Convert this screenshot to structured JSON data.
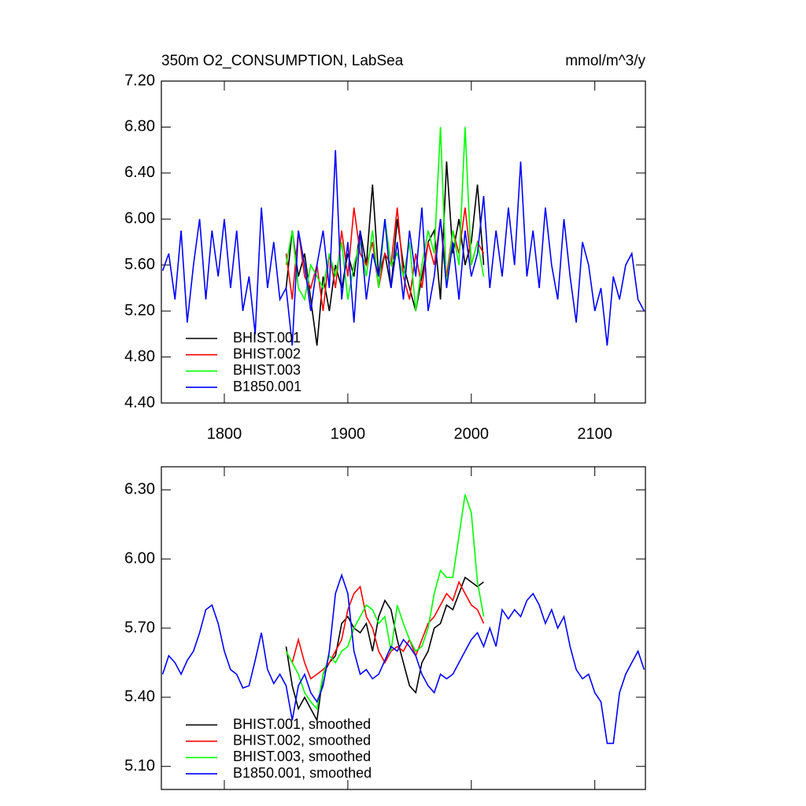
{
  "chart_data": [
    {
      "type": "line",
      "title": "350m O2_CONSUMPTION, LabSea",
      "units_label": "mmol/m^3/y",
      "x": [
        1750,
        1755,
        1760,
        1765,
        1770,
        1775,
        1780,
        1785,
        1790,
        1795,
        1800,
        1805,
        1810,
        1815,
        1820,
        1825,
        1830,
        1835,
        1840,
        1845,
        1850,
        1855,
        1860,
        1865,
        1870,
        1875,
        1880,
        1885,
        1890,
        1895,
        1900,
        1905,
        1910,
        1915,
        1920,
        1925,
        1930,
        1935,
        1940,
        1945,
        1950,
        1955,
        1960,
        1965,
        1970,
        1975,
        1980,
        1985,
        1990,
        1995,
        2000,
        2005,
        2010,
        2015,
        2020,
        2025,
        2030,
        2035,
        2040,
        2045,
        2050,
        2055,
        2060,
        2065,
        2070,
        2075,
        2080,
        2085,
        2090,
        2095,
        2100,
        2105,
        2110,
        2115,
        2120,
        2125,
        2130,
        2135,
        2140
      ],
      "xlim": [
        1749,
        2141
      ],
      "xticks": [
        1800,
        1900,
        2000,
        2100
      ],
      "xtick_labels": true,
      "ylim": [
        4.4,
        7.2
      ],
      "yticks": [
        {
          "value": 4.4,
          "label": "4.40"
        },
        {
          "value": 4.8,
          "label": "4.80"
        },
        {
          "value": 5.2,
          "label": "5.20"
        },
        {
          "value": 5.6,
          "label": "5.60"
        },
        {
          "value": 6.0,
          "label": "6.00"
        },
        {
          "value": 6.4,
          "label": "6.40"
        },
        {
          "value": 6.8,
          "label": "6.80"
        },
        {
          "value": 7.2,
          "label": "7.20"
        }
      ],
      "legend": "lower left",
      "series": [
        {
          "name": "BHIST.001",
          "color": "#000000",
          "values": [
            null,
            null,
            null,
            null,
            null,
            null,
            null,
            null,
            null,
            null,
            null,
            null,
            null,
            null,
            null,
            null,
            null,
            null,
            null,
            null,
            5.4,
            5.9,
            5.5,
            5.7,
            5.3,
            4.9,
            5.5,
            5.2,
            5.6,
            5.4,
            5.7,
            5.5,
            5.9,
            5.6,
            6.3,
            5.5,
            5.7,
            5.4,
            6.0,
            5.6,
            5.4,
            5.2,
            5.5,
            5.8,
            5.9,
            5.3,
            6.5,
            5.7,
            6.0,
            5.6,
            5.8,
            6.3,
            5.6,
            null,
            null,
            null,
            null,
            null,
            null,
            null,
            null,
            null,
            null,
            null,
            null,
            null,
            null,
            null,
            null,
            null,
            null,
            null,
            null,
            null,
            null,
            null,
            null,
            null,
            null
          ]
        },
        {
          "name": "BHIST.002",
          "color": "#ff0000",
          "values": [
            null,
            null,
            null,
            null,
            null,
            null,
            null,
            null,
            null,
            null,
            null,
            null,
            null,
            null,
            null,
            null,
            null,
            null,
            null,
            null,
            5.7,
            5.3,
            5.9,
            5.5,
            5.4,
            5.6,
            5.2,
            5.7,
            5.4,
            5.9,
            5.5,
            6.1,
            5.7,
            5.6,
            5.8,
            5.4,
            5.7,
            5.6,
            6.1,
            5.5,
            5.3,
            5.7,
            5.4,
            5.8,
            5.6,
            6.0,
            5.5,
            5.9,
            5.7,
            6.1,
            5.6,
            5.8,
            5.7,
            null,
            null,
            null,
            null,
            null,
            null,
            null,
            null,
            null,
            null,
            null,
            null,
            null,
            null,
            null,
            null,
            null,
            null,
            null,
            null,
            null,
            null,
            null,
            null,
            null,
            null
          ]
        },
        {
          "name": "BHIST.003",
          "color": "#00ff00",
          "values": [
            null,
            null,
            null,
            null,
            null,
            null,
            null,
            null,
            null,
            null,
            null,
            null,
            null,
            null,
            null,
            null,
            null,
            null,
            null,
            null,
            5.6,
            5.9,
            5.4,
            5.3,
            5.6,
            5.5,
            5.4,
            5.7,
            5.5,
            5.8,
            5.3,
            5.6,
            5.8,
            5.5,
            5.9,
            5.4,
            6.0,
            5.6,
            5.7,
            5.5,
            5.8,
            5.2,
            5.6,
            5.9,
            5.7,
            6.8,
            5.4,
            5.9,
            5.6,
            6.8,
            5.6,
            5.8,
            5.5,
            null,
            null,
            null,
            null,
            null,
            null,
            null,
            null,
            null,
            null,
            null,
            null,
            null,
            null,
            null,
            null,
            null,
            null,
            null,
            null,
            null,
            null,
            null,
            null,
            null,
            null
          ]
        },
        {
          "name": "B1850.001",
          "color": "#0000ff",
          "values": [
            5.55,
            5.7,
            5.3,
            5.9,
            5.1,
            5.6,
            6.0,
            5.3,
            5.9,
            5.5,
            6.0,
            5.4,
            5.9,
            5.2,
            5.5,
            5.0,
            6.1,
            5.4,
            5.8,
            5.3,
            5.4,
            4.9,
            5.9,
            5.6,
            5.2,
            5.6,
            5.9,
            5.4,
            6.6,
            5.3,
            5.8,
            5.1,
            5.9,
            5.3,
            5.7,
            5.5,
            6.0,
            5.4,
            5.8,
            5.3,
            5.9,
            5.5,
            6.1,
            5.2,
            5.5,
            6.0,
            5.4,
            5.8,
            5.3,
            5.9,
            5.5,
            5.7,
            6.2,
            5.4,
            5.9,
            5.5,
            6.1,
            5.6,
            6.5,
            5.5,
            5.9,
            5.4,
            6.1,
            5.6,
            5.3,
            6.0,
            5.5,
            5.1,
            5.8,
            5.6,
            5.2,
            5.4,
            4.9,
            5.5,
            5.3,
            5.6,
            5.7,
            5.3,
            5.2
          ]
        }
      ]
    },
    {
      "type": "line",
      "x": [
        1750,
        1755,
        1760,
        1765,
        1770,
        1775,
        1780,
        1785,
        1790,
        1795,
        1800,
        1805,
        1810,
        1815,
        1820,
        1825,
        1830,
        1835,
        1840,
        1845,
        1850,
        1855,
        1860,
        1865,
        1870,
        1875,
        1880,
        1885,
        1890,
        1895,
        1900,
        1905,
        1910,
        1915,
        1920,
        1925,
        1930,
        1935,
        1940,
        1945,
        1950,
        1955,
        1960,
        1965,
        1970,
        1975,
        1980,
        1985,
        1990,
        1995,
        2000,
        2005,
        2010,
        2015,
        2020,
        2025,
        2030,
        2035,
        2040,
        2045,
        2050,
        2055,
        2060,
        2065,
        2070,
        2075,
        2080,
        2085,
        2090,
        2095,
        2100,
        2105,
        2110,
        2115,
        2120,
        2125,
        2130,
        2135,
        2140
      ],
      "xlim": [
        1749,
        2141
      ],
      "xticks": [
        1800,
        1900,
        2000,
        2100
      ],
      "xtick_labels": false,
      "ylim": [
        5.0,
        6.4
      ],
      "yticks": [
        {
          "value": 5.1,
          "label": "5.10"
        },
        {
          "value": 5.4,
          "label": "5.40"
        },
        {
          "value": 5.7,
          "label": "5.70"
        },
        {
          "value": 6.0,
          "label": "6.00"
        },
        {
          "value": 6.3,
          "label": "6.30"
        }
      ],
      "legend": "lower left",
      "series": [
        {
          "name": "BHIST.001, smoothed",
          "color": "#000000",
          "values": [
            null,
            null,
            null,
            null,
            null,
            null,
            null,
            null,
            null,
            null,
            null,
            null,
            null,
            null,
            null,
            null,
            null,
            null,
            null,
            null,
            5.62,
            5.45,
            5.35,
            5.4,
            5.35,
            5.3,
            5.5,
            5.55,
            5.58,
            5.72,
            5.75,
            5.7,
            5.68,
            5.72,
            5.6,
            5.75,
            5.82,
            5.78,
            5.65,
            5.55,
            5.45,
            5.42,
            5.55,
            5.6,
            5.7,
            5.72,
            5.8,
            5.78,
            5.85,
            5.92,
            5.9,
            5.88,
            5.9,
            null,
            null,
            null,
            null,
            null,
            null,
            null,
            null,
            null,
            null,
            null,
            null,
            null,
            null,
            null,
            null,
            null,
            null,
            null,
            null,
            null,
            null,
            null,
            null,
            null,
            null
          ]
        },
        {
          "name": "BHIST.002, smoothed",
          "color": "#ff0000",
          "values": [
            null,
            null,
            null,
            null,
            null,
            null,
            null,
            null,
            null,
            null,
            null,
            null,
            null,
            null,
            null,
            null,
            null,
            null,
            null,
            null,
            5.6,
            5.55,
            5.65,
            5.55,
            5.48,
            5.5,
            5.52,
            5.55,
            5.6,
            5.65,
            5.78,
            5.85,
            5.88,
            5.75,
            5.7,
            5.6,
            5.55,
            5.6,
            5.62,
            5.6,
            5.65,
            5.58,
            5.65,
            5.72,
            5.75,
            5.8,
            5.85,
            5.82,
            5.9,
            5.85,
            5.8,
            5.78,
            5.72,
            null,
            null,
            null,
            null,
            null,
            null,
            null,
            null,
            null,
            null,
            null,
            null,
            null,
            null,
            null,
            null,
            null,
            null,
            null,
            null,
            null,
            null,
            null,
            null,
            null,
            null
          ]
        },
        {
          "name": "BHIST.003, smoothed",
          "color": "#00ff00",
          "values": [
            null,
            null,
            null,
            null,
            null,
            null,
            null,
            null,
            null,
            null,
            null,
            null,
            null,
            null,
            null,
            null,
            null,
            null,
            null,
            null,
            5.6,
            5.55,
            5.5,
            5.42,
            5.38,
            5.35,
            5.5,
            5.58,
            5.55,
            5.6,
            5.62,
            5.7,
            5.75,
            5.8,
            5.78,
            5.72,
            5.75,
            5.6,
            5.8,
            5.72,
            5.65,
            5.6,
            5.62,
            5.7,
            5.85,
            5.95,
            5.92,
            5.92,
            6.1,
            6.28,
            6.2,
            5.9,
            5.75,
            null,
            null,
            null,
            null,
            null,
            null,
            null,
            null,
            null,
            null,
            null,
            null,
            null,
            null,
            null,
            null,
            null,
            null,
            null,
            null,
            null,
            null,
            null,
            null,
            null,
            null
          ]
        },
        {
          "name": "B1850.001, smoothed",
          "color": "#0000ff",
          "values": [
            5.5,
            5.58,
            5.55,
            5.5,
            5.56,
            5.6,
            5.68,
            5.78,
            5.8,
            5.72,
            5.6,
            5.52,
            5.5,
            5.44,
            5.45,
            5.56,
            5.68,
            5.52,
            5.46,
            5.5,
            5.45,
            5.3,
            5.45,
            5.5,
            5.42,
            5.38,
            5.45,
            5.6,
            5.85,
            5.93,
            5.85,
            5.6,
            5.5,
            5.52,
            5.48,
            5.5,
            5.56,
            5.62,
            5.6,
            5.65,
            5.62,
            5.58,
            5.5,
            5.45,
            5.42,
            5.5,
            5.48,
            5.5,
            5.55,
            5.6,
            5.65,
            5.68,
            5.62,
            5.7,
            5.62,
            5.78,
            5.74,
            5.78,
            5.75,
            5.82,
            5.85,
            5.8,
            5.72,
            5.78,
            5.7,
            5.75,
            5.62,
            5.52,
            5.48,
            5.5,
            5.42,
            5.38,
            5.2,
            5.2,
            5.42,
            5.5,
            5.55,
            5.6,
            5.52
          ]
        }
      ]
    }
  ]
}
